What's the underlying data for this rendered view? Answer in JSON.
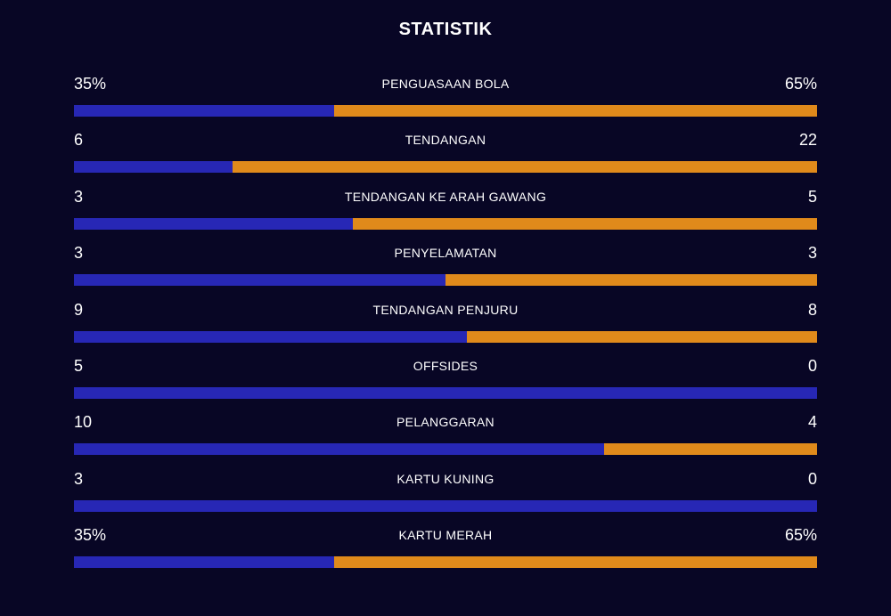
{
  "title": "STATISTIK",
  "colors": {
    "background": "#080625",
    "home": "#2727b5",
    "away": "#e08a1b",
    "text": "#ffffff"
  },
  "stats": [
    {
      "label": "PENGUASAAN BOLA",
      "left": "35%",
      "right": "65%",
      "home_share": 0.35
    },
    {
      "label": "TENDANGAN",
      "left": "6",
      "right": "22",
      "home_share": 0.214
    },
    {
      "label": "TENDANGAN KE ARAH GAWANG",
      "left": "3",
      "right": "5",
      "home_share": 0.375
    },
    {
      "label": "PENYELAMATAN",
      "left": "3",
      "right": "3",
      "home_share": 0.5
    },
    {
      "label": "TENDANGAN PENJURU",
      "left": "9",
      "right": "8",
      "home_share": 0.529
    },
    {
      "label": "OFFSIDES",
      "left": "5",
      "right": "0",
      "home_share": 1.0
    },
    {
      "label": "PELANGGARAN",
      "left": "10",
      "right": "4",
      "home_share": 0.714
    },
    {
      "label": "KARTU KUNING",
      "left": "3",
      "right": "0",
      "home_share": 1.0
    },
    {
      "label": "KARTU MERAH",
      "left": "35%",
      "right": "65%",
      "home_share": 0.35
    }
  ]
}
